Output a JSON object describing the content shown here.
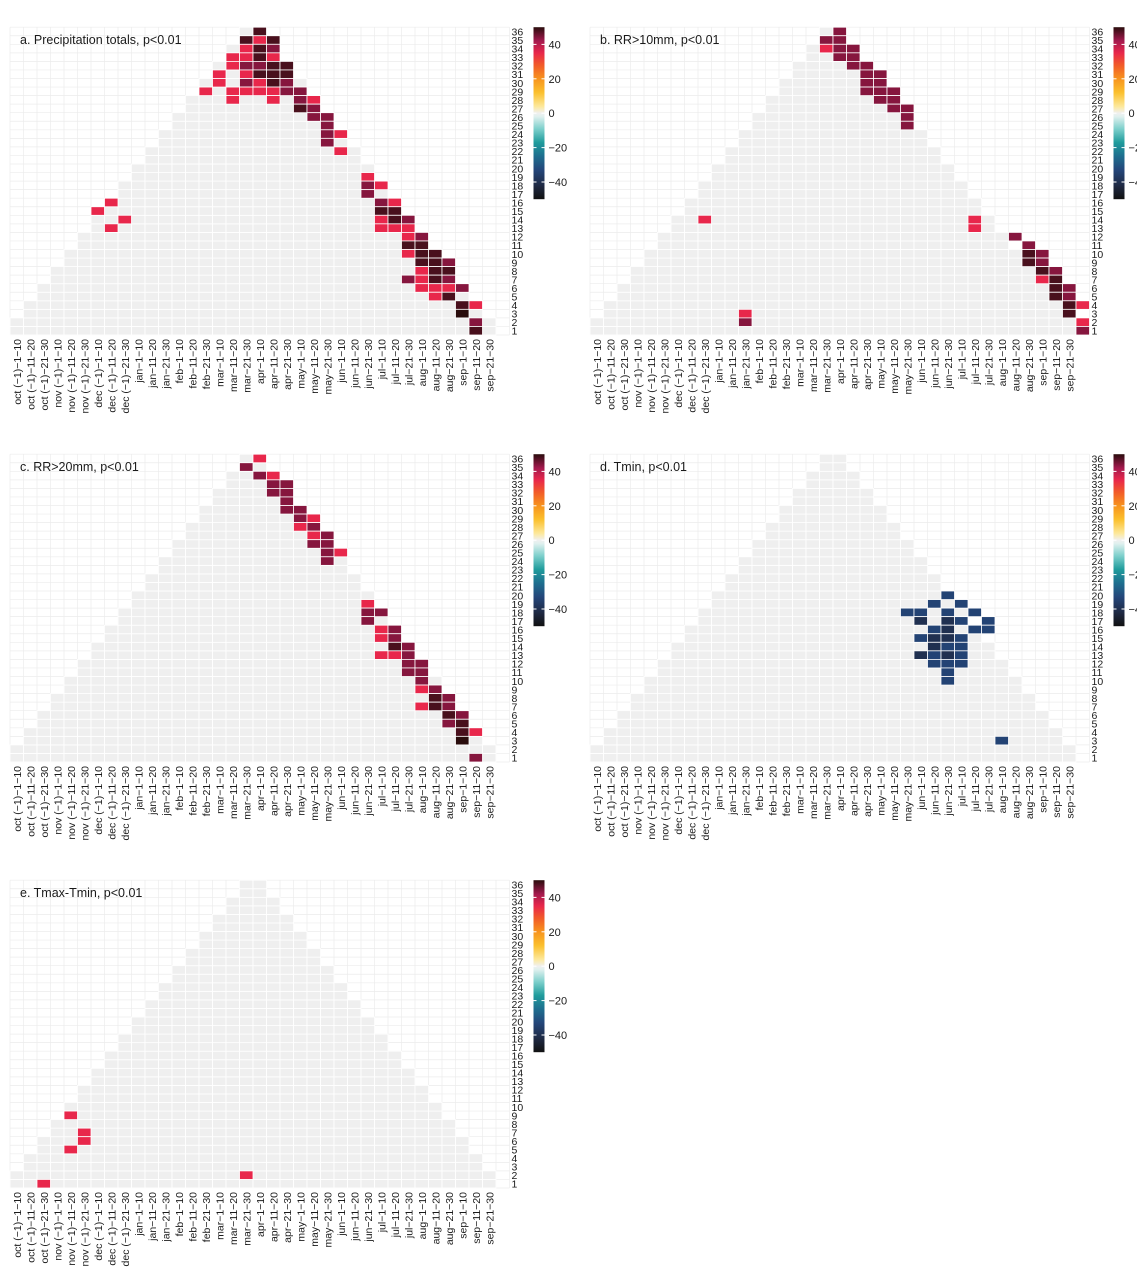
{
  "figure": {
    "y_ticks": [
      "1",
      "2",
      "3",
      "4",
      "5",
      "6",
      "7",
      "8",
      "9",
      "10",
      "11",
      "12",
      "13",
      "14",
      "15",
      "16",
      "17",
      "18",
      "19",
      "20",
      "21",
      "22",
      "23",
      "24",
      "25",
      "26",
      "27",
      "28",
      "29",
      "30",
      "31",
      "32",
      "33",
      "34",
      "35",
      "36"
    ],
    "x_ticks": [
      "oct (−1)−1−10",
      "oct (−1)−11−20",
      "oct (−1)−21−30",
      "nov (−1)−1−10",
      "nov (−1)−11−20",
      "nov (−1)−21−30",
      "dec (−1)−1−10",
      "dec (−1)−11−20",
      "dec (−1)−21−30",
      "jan−1−10",
      "jan−11−20",
      "jan−21−30",
      "feb−1−10",
      "feb−11−20",
      "feb−21−30",
      "mar−1−10",
      "mar−11−20",
      "mar−21−30",
      "apr−1−10",
      "apr−11−20",
      "apr−21−30",
      "may−1−10",
      "may−11−20",
      "may−21−30",
      "jun−1−10",
      "jun−11−20",
      "jun−21−30",
      "jul−1−10",
      "jul−11−20",
      "jul−21−30",
      "aug−1−10",
      "aug−11−20",
      "aug−21−30",
      "sep−1−10",
      "sep−11−20",
      "sep−21−30"
    ],
    "colorbar": {
      "ticks": [
        40,
        20,
        0,
        -20,
        -40
      ],
      "range": [
        -50,
        50
      ],
      "stops": [
        {
          "v": -50,
          "color": "#111111"
        },
        {
          "v": -42,
          "color": "#1f2a44"
        },
        {
          "v": -33,
          "color": "#24467a"
        },
        {
          "v": -25,
          "color": "#1e6e8f"
        },
        {
          "v": -17,
          "color": "#1f9c9c"
        },
        {
          "v": -9,
          "color": "#7fd0cc"
        },
        {
          "v": -2,
          "color": "#dff0ee"
        },
        {
          "v": 0,
          "color": "#f0f0f0"
        },
        {
          "v": 4,
          "color": "#fde89a"
        },
        {
          "v": 12,
          "color": "#fbc02d"
        },
        {
          "v": 20,
          "color": "#f7941d"
        },
        {
          "v": 28,
          "color": "#f15a29"
        },
        {
          "v": 35,
          "color": "#e8274b"
        },
        {
          "v": 42,
          "color": "#a4194e"
        },
        {
          "v": 50,
          "color": "#2a0d0d"
        }
      ]
    },
    "background_cell_color": "#efefef",
    "grid_color": "#ffffff"
  },
  "chart_data": [
    {
      "type": "heatmap",
      "title": "a. Precipitation totals, p<0.01",
      "xlabel": "",
      "ylabel": "",
      "note": "cells: [x_index (0 = oct (−1)−1−10), window length, correlation ×100]",
      "cells": [
        [
          18,
          36,
          48
        ],
        [
          17,
          35,
          48
        ],
        [
          18,
          35,
          35
        ],
        [
          19,
          35,
          48
        ],
        [
          17,
          34,
          35
        ],
        [
          18,
          34,
          48
        ],
        [
          19,
          34,
          44
        ],
        [
          16,
          33,
          35
        ],
        [
          17,
          33,
          35
        ],
        [
          18,
          33,
          48
        ],
        [
          19,
          33,
          35
        ],
        [
          16,
          32,
          35
        ],
        [
          17,
          32,
          44
        ],
        [
          18,
          32,
          44
        ],
        [
          19,
          32,
          48
        ],
        [
          20,
          32,
          48
        ],
        [
          15,
          31,
          35
        ],
        [
          17,
          31,
          35
        ],
        [
          18,
          31,
          48
        ],
        [
          19,
          31,
          48
        ],
        [
          20,
          31,
          48
        ],
        [
          15,
          30,
          35
        ],
        [
          17,
          30,
          44
        ],
        [
          18,
          30,
          35
        ],
        [
          19,
          30,
          48
        ],
        [
          20,
          30,
          44
        ],
        [
          14,
          29,
          35
        ],
        [
          16,
          29,
          35
        ],
        [
          17,
          29,
          35
        ],
        [
          18,
          29,
          35
        ],
        [
          19,
          29,
          35
        ],
        [
          20,
          29,
          44
        ],
        [
          21,
          29,
          44
        ],
        [
          16,
          28,
          35
        ],
        [
          19,
          28,
          35
        ],
        [
          21,
          28,
          44
        ],
        [
          22,
          28,
          35
        ],
        [
          21,
          27,
          48
        ],
        [
          22,
          27,
          44
        ],
        [
          22,
          26,
          44
        ],
        [
          23,
          26,
          44
        ],
        [
          23,
          25,
          44
        ],
        [
          23,
          24,
          44
        ],
        [
          24,
          24,
          35
        ],
        [
          23,
          23,
          44
        ],
        [
          24,
          22,
          35
        ],
        [
          26,
          19,
          35
        ],
        [
          26,
          18,
          44
        ],
        [
          27,
          18,
          35
        ],
        [
          26,
          17,
          44
        ],
        [
          27,
          16,
          44
        ],
        [
          28,
          16,
          35
        ],
        [
          27,
          15,
          48
        ],
        [
          28,
          15,
          48
        ],
        [
          27,
          14,
          35
        ],
        [
          28,
          14,
          48
        ],
        [
          29,
          14,
          44
        ],
        [
          27,
          13,
          35
        ],
        [
          28,
          13,
          35
        ],
        [
          29,
          13,
          35
        ],
        [
          29,
          12,
          35
        ],
        [
          30,
          12,
          44
        ],
        [
          29,
          11,
          48
        ],
        [
          30,
          11,
          48
        ],
        [
          29,
          10,
          35
        ],
        [
          30,
          10,
          48
        ],
        [
          31,
          10,
          48
        ],
        [
          30,
          9,
          48
        ],
        [
          31,
          9,
          48
        ],
        [
          32,
          9,
          44
        ],
        [
          30,
          8,
          35
        ],
        [
          31,
          8,
          48
        ],
        [
          32,
          8,
          48
        ],
        [
          29,
          7,
          44
        ],
        [
          30,
          7,
          35
        ],
        [
          31,
          7,
          48
        ],
        [
          32,
          7,
          44
        ],
        [
          30,
          6,
          35
        ],
        [
          31,
          6,
          35
        ],
        [
          32,
          6,
          35
        ],
        [
          33,
          6,
          44
        ],
        [
          31,
          5,
          35
        ],
        [
          32,
          5,
          48
        ],
        [
          33,
          4,
          48
        ],
        [
          34,
          4,
          35
        ],
        [
          33,
          3,
          52
        ],
        [
          34,
          2,
          44
        ],
        [
          34,
          1,
          48
        ],
        [
          7,
          16,
          35
        ],
        [
          6,
          15,
          35
        ],
        [
          8,
          14,
          35
        ],
        [
          7,
          13,
          35
        ]
      ]
    },
    {
      "type": "heatmap",
      "title": "b. RR>10mm, p<0.01",
      "xlabel": "",
      "ylabel": "",
      "cells": [
        [
          18,
          36,
          44
        ],
        [
          17,
          35,
          44
        ],
        [
          18,
          35,
          44
        ],
        [
          17,
          34,
          35
        ],
        [
          18,
          34,
          44
        ],
        [
          19,
          34,
          44
        ],
        [
          18,
          33,
          44
        ],
        [
          19,
          33,
          44
        ],
        [
          19,
          32,
          44
        ],
        [
          20,
          32,
          44
        ],
        [
          20,
          31,
          44
        ],
        [
          21,
          31,
          44
        ],
        [
          20,
          30,
          44
        ],
        [
          21,
          30,
          44
        ],
        [
          20,
          29,
          44
        ],
        [
          21,
          29,
          44
        ],
        [
          22,
          29,
          44
        ],
        [
          21,
          28,
          44
        ],
        [
          22,
          28,
          44
        ],
        [
          22,
          27,
          44
        ],
        [
          23,
          27,
          44
        ],
        [
          23,
          26,
          44
        ],
        [
          23,
          25,
          44
        ],
        [
          8,
          14,
          35
        ],
        [
          28,
          14,
          35
        ],
        [
          28,
          13,
          35
        ],
        [
          31,
          12,
          44
        ],
        [
          32,
          11,
          44
        ],
        [
          32,
          10,
          48
        ],
        [
          33,
          10,
          44
        ],
        [
          32,
          9,
          48
        ],
        [
          33,
          9,
          44
        ],
        [
          33,
          8,
          48
        ],
        [
          34,
          8,
          44
        ],
        [
          33,
          7,
          35
        ],
        [
          34,
          7,
          48
        ],
        [
          34,
          6,
          48
        ],
        [
          35,
          6,
          44
        ],
        [
          34,
          5,
          48
        ],
        [
          35,
          5,
          44
        ],
        [
          35,
          4,
          48
        ],
        [
          36,
          4,
          35
        ],
        [
          35,
          3,
          48
        ],
        [
          36,
          2,
          35
        ],
        [
          36,
          1,
          44
        ],
        [
          11,
          3,
          35
        ],
        [
          11,
          2,
          44
        ]
      ]
    },
    {
      "type": "heatmap",
      "title": "c. RR>20mm, p<0.01",
      "xlabel": "",
      "ylabel": "",
      "cells": [
        [
          18,
          36,
          35
        ],
        [
          17,
          35,
          44
        ],
        [
          18,
          34,
          44
        ],
        [
          19,
          34,
          35
        ],
        [
          19,
          33,
          44
        ],
        [
          20,
          33,
          44
        ],
        [
          19,
          32,
          44
        ],
        [
          20,
          32,
          44
        ],
        [
          20,
          31,
          44
        ],
        [
          20,
          30,
          44
        ],
        [
          21,
          30,
          44
        ],
        [
          21,
          29,
          44
        ],
        [
          22,
          29,
          35
        ],
        [
          21,
          28,
          35
        ],
        [
          22,
          28,
          44
        ],
        [
          22,
          27,
          35
        ],
        [
          23,
          27,
          44
        ],
        [
          22,
          26,
          44
        ],
        [
          23,
          26,
          44
        ],
        [
          23,
          25,
          44
        ],
        [
          24,
          25,
          35
        ],
        [
          23,
          24,
          44
        ],
        [
          26,
          19,
          35
        ],
        [
          26,
          18,
          44
        ],
        [
          27,
          18,
          44
        ],
        [
          26,
          17,
          44
        ],
        [
          27,
          16,
          35
        ],
        [
          28,
          16,
          44
        ],
        [
          27,
          15,
          35
        ],
        [
          28,
          15,
          44
        ],
        [
          28,
          14,
          48
        ],
        [
          29,
          14,
          44
        ],
        [
          27,
          13,
          35
        ],
        [
          28,
          13,
          35
        ],
        [
          29,
          13,
          44
        ],
        [
          29,
          12,
          44
        ],
        [
          30,
          12,
          44
        ],
        [
          29,
          11,
          44
        ],
        [
          30,
          11,
          44
        ],
        [
          30,
          10,
          44
        ],
        [
          30,
          9,
          35
        ],
        [
          31,
          9,
          44
        ],
        [
          31,
          8,
          48
        ],
        [
          32,
          8,
          44
        ],
        [
          30,
          7,
          35
        ],
        [
          31,
          7,
          48
        ],
        [
          32,
          7,
          44
        ],
        [
          32,
          6,
          48
        ],
        [
          33,
          6,
          44
        ],
        [
          32,
          5,
          44
        ],
        [
          33,
          5,
          48
        ],
        [
          33,
          4,
          48
        ],
        [
          34,
          4,
          35
        ],
        [
          33,
          3,
          52
        ],
        [
          34,
          1,
          44
        ]
      ]
    },
    {
      "type": "heatmap",
      "title": "d. Tmin, p<0.01",
      "xlabel": "",
      "ylabel": "",
      "cells": [
        [
          26,
          20,
          -34
        ],
        [
          25,
          19,
          -34
        ],
        [
          27,
          19,
          -34
        ],
        [
          23,
          18,
          -34
        ],
        [
          24,
          18,
          -34
        ],
        [
          26,
          18,
          -34
        ],
        [
          28,
          18,
          -34
        ],
        [
          24,
          17,
          -40
        ],
        [
          26,
          17,
          -40
        ],
        [
          27,
          17,
          -34
        ],
        [
          29,
          17,
          -34
        ],
        [
          25,
          16,
          -34
        ],
        [
          26,
          16,
          -40
        ],
        [
          28,
          16,
          -34
        ],
        [
          29,
          16,
          -34
        ],
        [
          24,
          15,
          -34
        ],
        [
          25,
          15,
          -40
        ],
        [
          26,
          15,
          -40
        ],
        [
          27,
          15,
          -34
        ],
        [
          25,
          14,
          -40
        ],
        [
          26,
          14,
          -34
        ],
        [
          27,
          14,
          -34
        ],
        [
          24,
          13,
          -40
        ],
        [
          25,
          13,
          -34
        ],
        [
          26,
          13,
          -40
        ],
        [
          27,
          13,
          -34
        ],
        [
          25,
          12,
          -34
        ],
        [
          26,
          12,
          -34
        ],
        [
          27,
          12,
          -34
        ],
        [
          26,
          11,
          -34
        ],
        [
          26,
          10,
          -34
        ],
        [
          30,
          3,
          -34
        ]
      ]
    },
    {
      "type": "heatmap",
      "title": "e. Tmax-Tmin, p<0.01",
      "xlabel": "",
      "ylabel": "",
      "cells": [
        [
          4,
          9,
          35
        ],
        [
          5,
          7,
          35
        ],
        [
          5,
          6,
          35
        ],
        [
          4,
          5,
          35
        ],
        [
          17,
          2,
          35
        ],
        [
          2,
          1,
          35
        ]
      ]
    }
  ]
}
